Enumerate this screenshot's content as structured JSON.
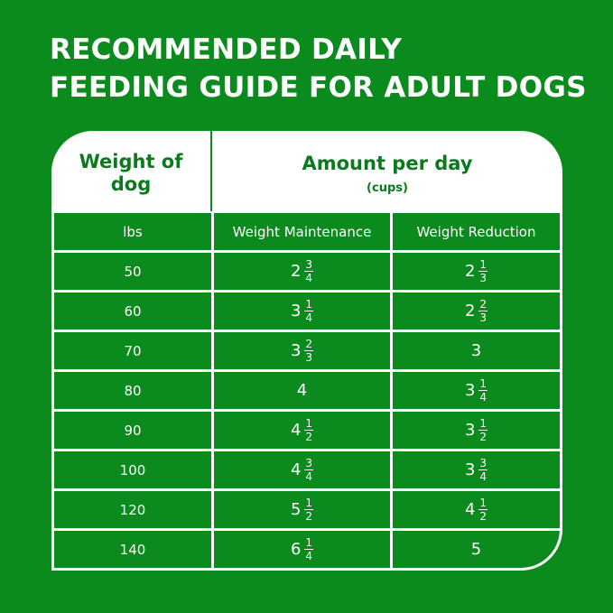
{
  "title_lines": [
    "RECOMMENDED DAILY",
    "FEEDING GUIDE FOR ADULT DOGS"
  ],
  "colors": {
    "background": "#0b8a1d",
    "header_text": "#0b7a1d",
    "card": "#ffffff"
  },
  "table": {
    "weight_header": [
      "Weight of",
      "dog"
    ],
    "amount_header": "Amount per day",
    "amount_unit": "(cups)",
    "columns": [
      "lbs",
      "Weight Maintenance",
      "Weight Reduction"
    ],
    "rows": [
      {
        "lbs": "50",
        "maintenance": {
          "whole": "2",
          "num": "3",
          "den": "4"
        },
        "reduction": {
          "whole": "2",
          "num": "1",
          "den": "3"
        }
      },
      {
        "lbs": "60",
        "maintenance": {
          "whole": "3",
          "num": "1",
          "den": "4"
        },
        "reduction": {
          "whole": "2",
          "num": "2",
          "den": "3"
        }
      },
      {
        "lbs": "70",
        "maintenance": {
          "whole": "3",
          "num": "2",
          "den": "3"
        },
        "reduction": {
          "whole": "3"
        }
      },
      {
        "lbs": "80",
        "maintenance": {
          "whole": "4"
        },
        "reduction": {
          "whole": "3",
          "num": "1",
          "den": "4"
        }
      },
      {
        "lbs": "90",
        "maintenance": {
          "whole": "4",
          "num": "1",
          "den": "2"
        },
        "reduction": {
          "whole": "3",
          "num": "1",
          "den": "2"
        }
      },
      {
        "lbs": "100",
        "maintenance": {
          "whole": "4",
          "num": "3",
          "den": "4"
        },
        "reduction": {
          "whole": "3",
          "num": "3",
          "den": "4"
        }
      },
      {
        "lbs": "120",
        "maintenance": {
          "whole": "5",
          "num": "1",
          "den": "2"
        },
        "reduction": {
          "whole": "4",
          "num": "1",
          "den": "2"
        }
      },
      {
        "lbs": "140",
        "maintenance": {
          "whole": "6",
          "num": "1",
          "den": "4"
        },
        "reduction": {
          "whole": "5"
        }
      }
    ]
  }
}
